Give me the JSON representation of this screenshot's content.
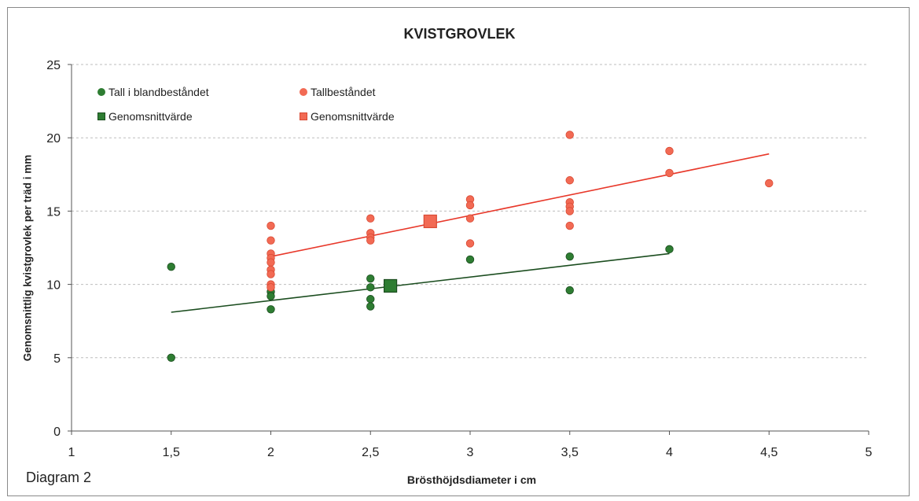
{
  "chart_data": {
    "type": "scatter",
    "title": "KVISTGROVLEK",
    "xlabel": "Brösthöjdsdiameter i cm",
    "ylabel": "Genomsnittlig kvistgrovlek per träd i mm",
    "diagram_label": "Diagram 2",
    "xlim": [
      1,
      5
    ],
    "ylim": [
      0,
      25
    ],
    "x_ticks": [
      "1",
      "1,5",
      "2",
      "2,5",
      "3",
      "3,5",
      "4",
      "4,5",
      "5"
    ],
    "x_tick_values": [
      1,
      1.5,
      2,
      2.5,
      3,
      3.5,
      4,
      4.5,
      5
    ],
    "y_ticks": [
      "0",
      "5",
      "10",
      "15",
      "20",
      "25"
    ],
    "y_tick_values": [
      0,
      5,
      10,
      15,
      20,
      25
    ],
    "grid": "horizontal dashed",
    "legend": "top-left, inside plot",
    "series": [
      {
        "name": "Tall i blandbeståndet",
        "marker": "circle",
        "color": "#2e7d32",
        "points": [
          [
            1.5,
            11.2
          ],
          [
            1.5,
            5.0
          ],
          [
            2,
            9.5
          ],
          [
            2,
            9.2
          ],
          [
            2,
            8.3
          ],
          [
            2.5,
            10.4
          ],
          [
            2.5,
            9.8
          ],
          [
            2.5,
            9.0
          ],
          [
            2.5,
            8.5
          ],
          [
            3,
            11.7
          ],
          [
            3.5,
            11.9
          ],
          [
            3.5,
            9.6
          ],
          [
            4,
            12.4
          ]
        ],
        "trendline": [
          [
            1.5,
            8.1
          ],
          [
            4,
            12.1
          ]
        ]
      },
      {
        "name": "Tallbeståndet",
        "marker": "circle",
        "color": "#f26a54",
        "points": [
          [
            2,
            14.0
          ],
          [
            2,
            13.0
          ],
          [
            2,
            12.1
          ],
          [
            2,
            11.8
          ],
          [
            2,
            11.5
          ],
          [
            2,
            11.0
          ],
          [
            2,
            10.7
          ],
          [
            2,
            10.0
          ],
          [
            2,
            9.8
          ],
          [
            2.5,
            14.5
          ],
          [
            2.5,
            13.5
          ],
          [
            2.5,
            13.2
          ],
          [
            2.5,
            13.0
          ],
          [
            3,
            15.8
          ],
          [
            3,
            15.4
          ],
          [
            3,
            14.5
          ],
          [
            3,
            12.8
          ],
          [
            3.5,
            20.2
          ],
          [
            3.5,
            17.1
          ],
          [
            3.5,
            15.6
          ],
          [
            3.5,
            15.3
          ],
          [
            3.5,
            15.0
          ],
          [
            3.5,
            14.0
          ],
          [
            4,
            19.1
          ],
          [
            4,
            17.6
          ],
          [
            4.5,
            16.9
          ]
        ],
        "trendline": [
          [
            2,
            11.9
          ],
          [
            4.5,
            18.9
          ]
        ]
      },
      {
        "name": "Genomsnittvärde",
        "marker": "square",
        "color": "#2e7d32",
        "points": [
          [
            2.6,
            9.9
          ]
        ]
      },
      {
        "name": "Genomsnittvärde",
        "marker": "square",
        "color": "#f26a54",
        "points": [
          [
            2.8,
            14.3
          ]
        ]
      }
    ]
  },
  "colors": {
    "green": "#2e7d32",
    "green_dark": "#1b4d1f",
    "red": "#f26a54",
    "red_dark": "#d94a34",
    "red_line": "#e8382a",
    "axis": "#555555",
    "grid": "#bdbdbd"
  }
}
